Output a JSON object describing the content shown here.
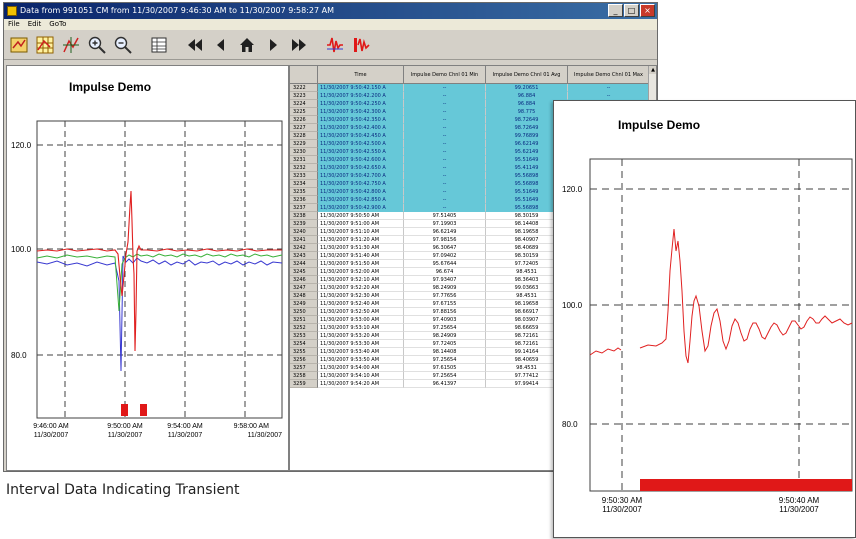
{
  "window": {
    "title": "Data from 991051 CM from 11/30/2007 9:46:30 AM to 11/30/2007 9:58:27 AM",
    "controls": {
      "minimize": "_",
      "maximize": "□",
      "close": "×"
    }
  },
  "menubar": {
    "items": [
      "File",
      "Edit",
      "GoTo"
    ]
  },
  "toolbar": {
    "icons": [
      "select-channels-icon",
      "grid-icon",
      "cursor-icon",
      "zoom-in-icon",
      "zoom-out-icon",
      "table-icon",
      "first-icon",
      "previous-icon",
      "home-icon",
      "next-icon",
      "last-icon",
      "transient-red-icon",
      "transient-waveform-icon"
    ]
  },
  "chart": {
    "title": "Impulse Demo",
    "y_ticks": [
      "120.0",
      "100.0",
      "80.0"
    ],
    "x_ticks": [
      {
        "time": "9:46:00 AM",
        "date": "11/30/2007"
      },
      {
        "time": "9:50:00 AM",
        "date": "11/30/2007"
      },
      {
        "time": "9:54:00 AM",
        "date": "11/30/2007"
      },
      {
        "time": "9:58:00 AM",
        "date": "11/30/2007"
      }
    ]
  },
  "table": {
    "headers": [
      "Time",
      "Impulse Demo Chnl 01 Min",
      "Impulse Demo Chnl 01 Avg",
      "Impulse Demo Chnl 01 Max"
    ],
    "rows": [
      {
        "idx": "3222",
        "time": "11/30/2007 9:50:42.150 A",
        "min": "--",
        "avg": "99.20651",
        "max": "--",
        "hl": true
      },
      {
        "idx": "3223",
        "time": "11/30/2007 9:50:42.200 A",
        "min": "--",
        "avg": "96.884",
        "max": "--",
        "hl": true
      },
      {
        "idx": "3224",
        "time": "11/30/2007 9:50:42.250 A",
        "min": "--",
        "avg": "96.884",
        "max": "--",
        "hl": true
      },
      {
        "idx": "3225",
        "time": "11/30/2007 9:50:42.300 A",
        "min": "--",
        "avg": "98.775",
        "max": "--",
        "hl": true
      },
      {
        "idx": "3226",
        "time": "11/30/2007 9:50:42.350 A",
        "min": "--",
        "avg": "98.72649",
        "max": "--",
        "hl": true
      },
      {
        "idx": "3227",
        "time": "11/30/2007 9:50:42.400 A",
        "min": "--",
        "avg": "98.72649",
        "max": "--",
        "hl": true
      },
      {
        "idx": "3228",
        "time": "11/30/2007 9:50:42.450 A",
        "min": "--",
        "avg": "99.76899",
        "max": "--",
        "hl": true
      },
      {
        "idx": "3229",
        "time": "11/30/2007 9:50:42.500 A",
        "min": "--",
        "avg": "96.62149",
        "max": "--",
        "hl": true
      },
      {
        "idx": "3230",
        "time": "11/30/2007 9:50:42.550 A",
        "min": "--",
        "avg": "95.62149",
        "max": "--",
        "hl": true
      },
      {
        "idx": "3231",
        "time": "11/30/2007 9:50:42.600 A",
        "min": "--",
        "avg": "95.51649",
        "max": "--",
        "hl": true
      },
      {
        "idx": "3232",
        "time": "11/30/2007 9:50:42.650 A",
        "min": "--",
        "avg": "95.41149",
        "max": "--",
        "hl": true
      },
      {
        "idx": "3233",
        "time": "11/30/2007 9:50:42.700 A",
        "min": "--",
        "avg": "95.56898",
        "max": "--",
        "hl": true
      },
      {
        "idx": "3234",
        "time": "11/30/2007 9:50:42.750 A",
        "min": "--",
        "avg": "95.56898",
        "max": "--",
        "hl": true
      },
      {
        "idx": "3235",
        "time": "11/30/2007 9:50:42.800 A",
        "min": "--",
        "avg": "95.51649",
        "max": "--",
        "hl": true
      },
      {
        "idx": "3236",
        "time": "11/30/2007 9:50:42.850 A",
        "min": "--",
        "avg": "95.51649",
        "max": "--",
        "hl": true
      },
      {
        "idx": "3237",
        "time": "11/30/2007 9:50:42.900 A",
        "min": "--",
        "avg": "95.56898",
        "max": "--",
        "hl": true
      },
      {
        "idx": "3238",
        "time": "11/30/2007 9:50:50 AM",
        "min": "97.51405",
        "avg": "98.30159",
        "max": "",
        "hl": false
      },
      {
        "idx": "3239",
        "time": "11/30/2007 9:51:00 AM",
        "min": "97.19903",
        "avg": "98.14408",
        "max": "",
        "hl": false
      },
      {
        "idx": "3240",
        "time": "11/30/2007 9:51:10 AM",
        "min": "96.62149",
        "avg": "98.19658",
        "max": "",
        "hl": false
      },
      {
        "idx": "3241",
        "time": "11/30/2007 9:51:20 AM",
        "min": "97.98156",
        "avg": "98.40907",
        "max": "",
        "hl": false
      },
      {
        "idx": "3242",
        "time": "11/30/2007 9:51:30 AM",
        "min": "96.30647",
        "avg": "98.40689",
        "max": "",
        "hl": false
      },
      {
        "idx": "3243",
        "time": "11/30/2007 9:51:40 AM",
        "min": "97.09402",
        "avg": "98.30159",
        "max": "",
        "hl": false
      },
      {
        "idx": "3244",
        "time": "11/30/2007 9:51:50 AM",
        "min": "95.67644",
        "avg": "97.72405",
        "max": "",
        "hl": false
      },
      {
        "idx": "3245",
        "time": "11/30/2007 9:52:00 AM",
        "min": "96.674",
        "avg": "98.4531",
        "max": "",
        "hl": false
      },
      {
        "idx": "3246",
        "time": "11/30/2007 9:52:10 AM",
        "min": "97.93407",
        "avg": "98.36403",
        "max": "",
        "hl": false
      },
      {
        "idx": "3247",
        "time": "11/30/2007 9:52:20 AM",
        "min": "98.24909",
        "avg": "99.03663",
        "max": "",
        "hl": false
      },
      {
        "idx": "3248",
        "time": "11/30/2007 9:52:30 AM",
        "min": "97.77656",
        "avg": "98.4531",
        "max": "",
        "hl": false
      },
      {
        "idx": "3249",
        "time": "11/30/2007 9:52:40 AM",
        "min": "97.67155",
        "avg": "98.19658",
        "max": "",
        "hl": false
      },
      {
        "idx": "3250",
        "time": "11/30/2007 9:52:50 AM",
        "min": "97.88156",
        "avg": "98.66917",
        "max": "",
        "hl": false
      },
      {
        "idx": "3251",
        "time": "11/30/2007 9:53:00 AM",
        "min": "97.40903",
        "avg": "98.03907",
        "max": "",
        "hl": false
      },
      {
        "idx": "3252",
        "time": "11/30/2007 9:53:10 AM",
        "min": "97.25654",
        "avg": "98.66659",
        "max": "",
        "hl": false
      },
      {
        "idx": "3253",
        "time": "11/30/2007 9:53:20 AM",
        "min": "98.24909",
        "avg": "98.72161",
        "max": "",
        "hl": false
      },
      {
        "idx": "3254",
        "time": "11/30/2007 9:53:30 AM",
        "min": "97.72405",
        "avg": "98.72161",
        "max": "",
        "hl": false
      },
      {
        "idx": "3255",
        "time": "11/30/2007 9:53:40 AM",
        "min": "98.14408",
        "avg": "99.14164",
        "max": "",
        "hl": false
      },
      {
        "idx": "3256",
        "time": "11/30/2007 9:53:50 AM",
        "min": "97.25654",
        "avg": "98.40659",
        "max": "",
        "hl": false
      },
      {
        "idx": "3257",
        "time": "11/30/2007 9:54:00 AM",
        "min": "97.61505",
        "avg": "98.4531",
        "max": "",
        "hl": false
      },
      {
        "idx": "3258",
        "time": "11/30/2007 9:54:10 AM",
        "min": "97.25654",
        "avg": "97.77412",
        "max": "",
        "hl": false
      },
      {
        "idx": "3259",
        "time": "11/30/2007 9:54:20 AM",
        "min": "96.41397",
        "avg": "97.99414",
        "max": "",
        "hl": false
      }
    ]
  },
  "caption": "Interval Data Indicating Transient",
  "zoom_chart": {
    "title": "Impulse Demo",
    "y_ticks": [
      "120.0",
      "100.0",
      "80.0"
    ],
    "x_ticks": [
      {
        "time": "9:50:30 AM",
        "date": "11/30/2007"
      },
      {
        "time": "9:50:40 AM",
        "date": "11/30/2007"
      }
    ]
  },
  "colors": {
    "highlight_row": "#66c8d8",
    "series_red": "#e02020",
    "series_green": "#38b038",
    "series_blue": "#3838d0",
    "transient_marker": "#e01818"
  }
}
